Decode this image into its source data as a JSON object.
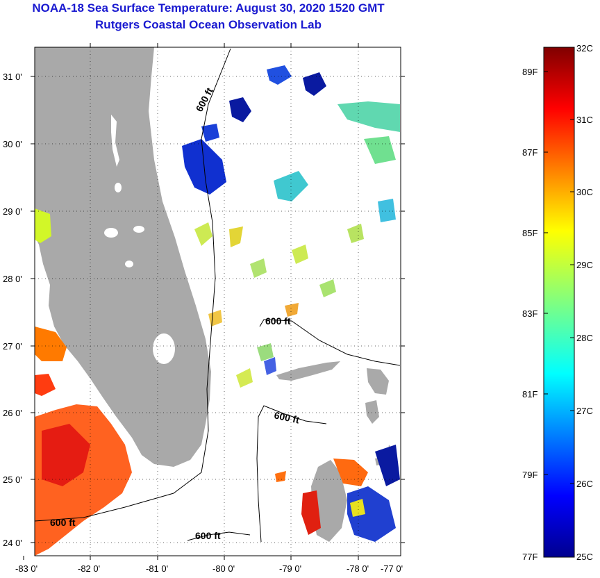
{
  "header": {
    "title": "NOAA-18 Sea Surface Temperature:  August 30, 2020 1520 GMT",
    "subtitle": "Rutgers Coastal Ocean Observation Lab"
  },
  "map": {
    "lon_labels": [
      "-83 0'",
      "-82 0'",
      "-81 0'",
      "-80 0'",
      "-79 0'",
      "-78 0'",
      "-77 0'"
    ],
    "lat_labels": [
      "31 0'",
      "30 0'",
      "29 0'",
      "28 0'",
      "27 0'",
      "26 0'",
      "25 0'",
      "24 0'"
    ],
    "contour_labels": [
      "600 ft",
      "600 ft",
      "600 ft",
      "600 ft",
      "600 ft"
    ],
    "colors": {
      "land": "#a9a9a9",
      "cloud": "#ffffff",
      "frame": "#000000"
    }
  },
  "colorbar": {
    "celsius_labels": [
      "32C",
      "31C",
      "30C",
      "29C",
      "28C",
      "27C",
      "26C",
      "25C"
    ],
    "fahrenheit_labels": [
      "89F",
      "87F",
      "85F",
      "83F",
      "81F",
      "79F",
      "77F"
    ],
    "colors": [
      "#00008f",
      "#0000ff",
      "#0080ff",
      "#00ffff",
      "#80ff80",
      "#ffff00",
      "#ff8000",
      "#ff0000",
      "#800000"
    ]
  }
}
